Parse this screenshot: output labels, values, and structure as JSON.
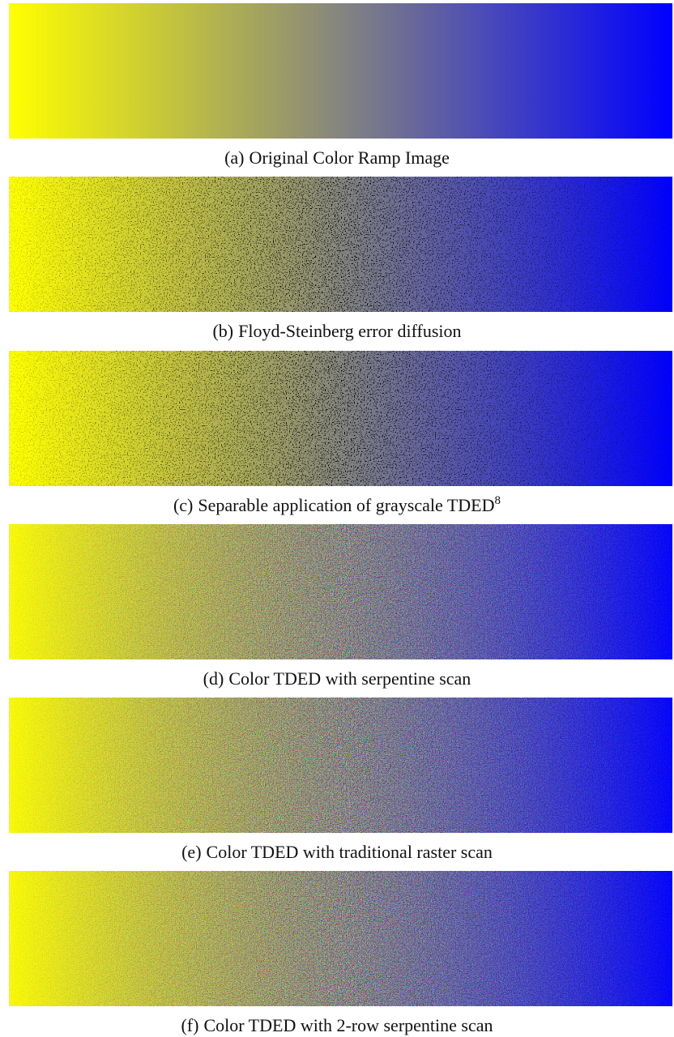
{
  "figure": {
    "panels": [
      {
        "label": "(a)",
        "caption": "Original Color Ramp Image",
        "style": "smooth"
      },
      {
        "label": "(b)",
        "caption": "Floyd-Steinberg error diffusion",
        "style": "mono-dither"
      },
      {
        "label": "(c)",
        "caption": "Separable application of grayscale TDED",
        "superscript": "8",
        "style": "mono-dither"
      },
      {
        "label": "(d)",
        "caption": "Color TDED with serpentine scan",
        "style": "color-dither"
      },
      {
        "label": "(e)",
        "caption": "Color TDED with traditional raster scan",
        "style": "color-dither"
      },
      {
        "label": "(f)",
        "caption": "Color TDED with 2-row serpentine scan",
        "style": "color-dither"
      }
    ]
  }
}
